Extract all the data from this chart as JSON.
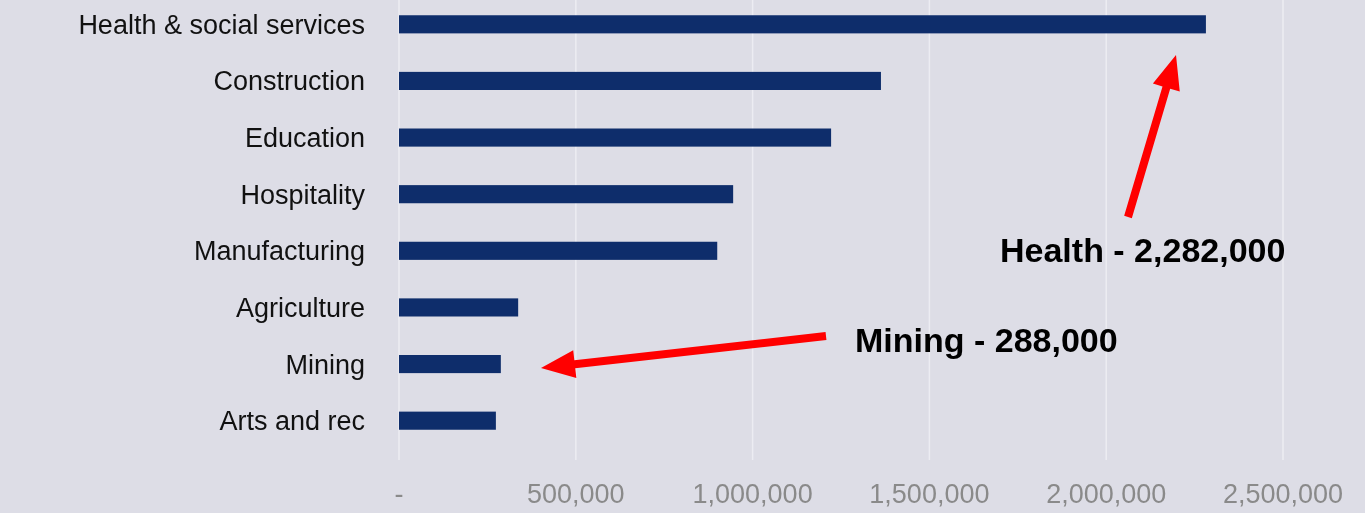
{
  "chart_data": {
    "type": "bar",
    "orientation": "horizontal",
    "categories": [
      "Health & social services",
      "Construction",
      "Education",
      "Hospitality",
      "Manufacturing",
      "Agriculture",
      "Mining",
      "Arts and rec"
    ],
    "values": [
      2282000,
      1363000,
      1222000,
      945000,
      900000,
      337000,
      288000,
      274000
    ],
    "color": "#0e2d6b",
    "xlim": [
      0,
      2500000
    ],
    "xticks": [
      {
        "value": 0,
        "label": "-"
      },
      {
        "value": 500000,
        "label": "500,000"
      },
      {
        "value": 1000000,
        "label": "1,000,000"
      },
      {
        "value": 1500000,
        "label": "1,500,000"
      },
      {
        "value": 2000000,
        "label": "2,000,000"
      },
      {
        "value": 2500000,
        "label": "2,500,000"
      }
    ],
    "grid": "x",
    "annotations": [
      "Health - 2,282,000",
      "Mining - 288,000"
    ]
  }
}
